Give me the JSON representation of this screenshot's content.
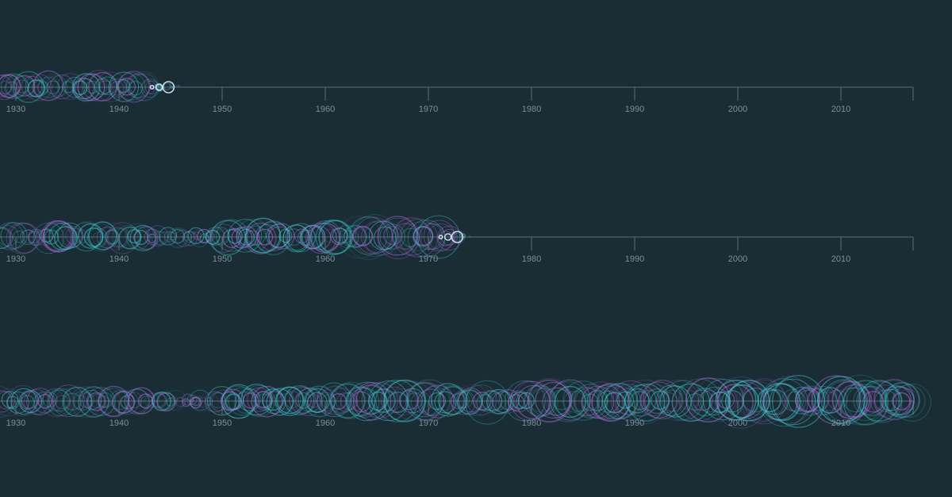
{
  "chart_data": [
    {
      "type": "scatter",
      "title": "",
      "xlabel": "",
      "ylabel": "",
      "xlim": [
        1929,
        2017
      ],
      "x_ticks": [
        "1930",
        "1940",
        "1950",
        "1960",
        "1970",
        "1980",
        "1990",
        "2000",
        "2010"
      ],
      "grid": false,
      "colors": {
        "primary": "#3fd0d4",
        "secondary": "#b870e8"
      },
      "x_end": 1946
    },
    {
      "type": "scatter",
      "title": "",
      "xlabel": "",
      "ylabel": "",
      "xlim": [
        1929,
        2017
      ],
      "x_ticks": [
        "1930",
        "1940",
        "1950",
        "1960",
        "1970",
        "1980",
        "1990",
        "2000",
        "2010"
      ],
      "grid": false,
      "colors": {
        "primary": "#3fd0d4",
        "secondary": "#b870e8"
      },
      "x_end": 1974
    },
    {
      "type": "scatter",
      "title": "",
      "xlabel": "",
      "ylabel": "",
      "xlim": [
        1929,
        2017
      ],
      "x_ticks": [
        "1930",
        "1940",
        "1950",
        "1960",
        "1970",
        "1980",
        "1990",
        "2000",
        "2010"
      ],
      "grid": false,
      "colors": {
        "primary": "#3fd0d4",
        "secondary": "#b870e8"
      },
      "x_end": 2017
    }
  ],
  "colors": {
    "background": "#1a2d35",
    "axis": "#5b7078",
    "tick_label": "#7d8f96"
  }
}
